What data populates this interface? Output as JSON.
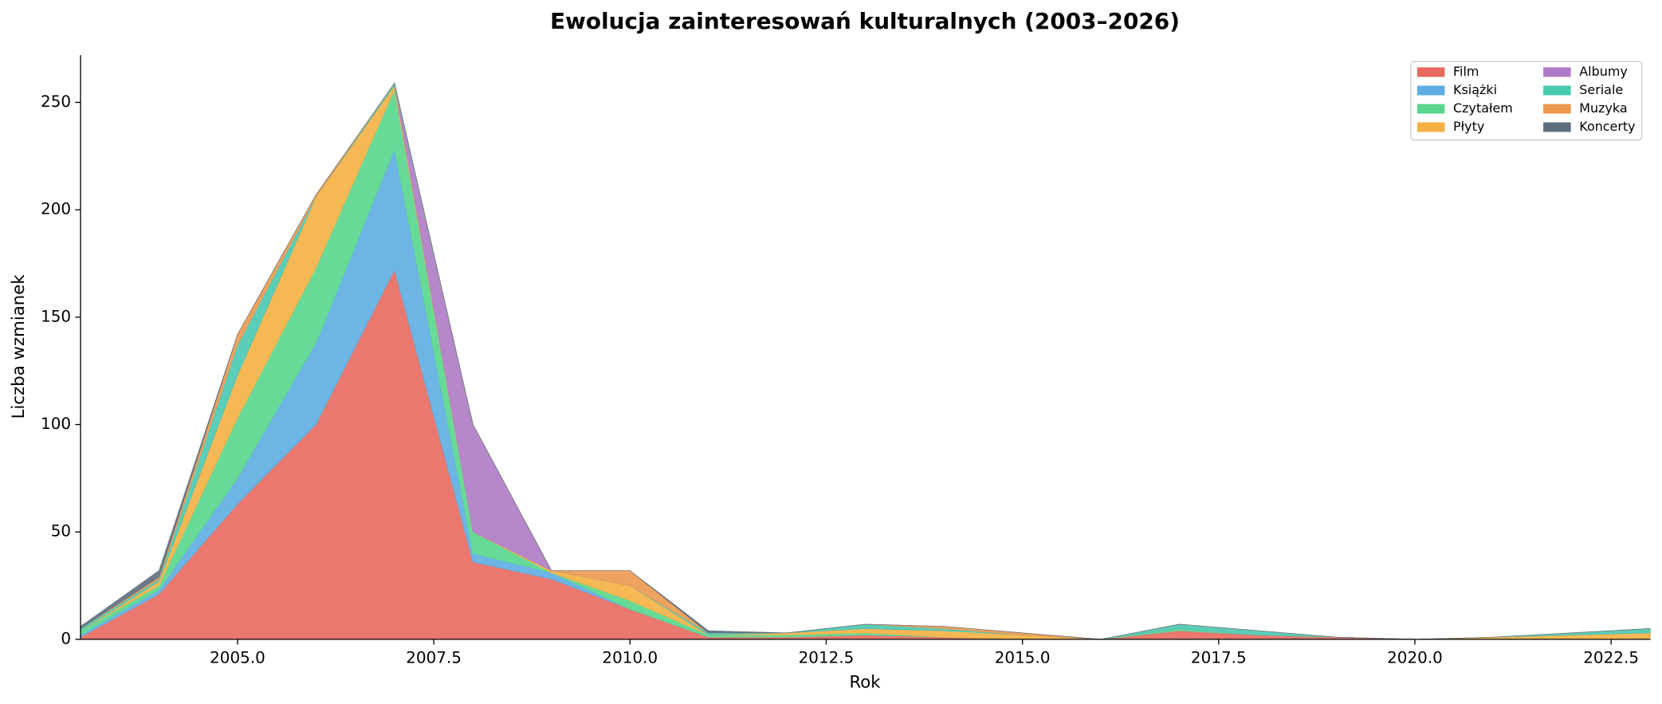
{
  "chart_data": {
    "type": "stacked_area",
    "title": "Ewolucja zainteresowań kulturalnych (2003–2026)",
    "xlabel": "Rok",
    "ylabel": "Liczba wzmianek",
    "x": [
      2003,
      2004,
      2005,
      2006,
      2007,
      2008,
      2009,
      2010,
      2011,
      2012,
      2013,
      2014,
      2015,
      2016,
      2017,
      2018,
      2019,
      2020,
      2021,
      2022,
      2023
    ],
    "series": [
      {
        "name": "Film",
        "color": "#e8695e",
        "values": [
          1,
          21,
          63,
          100,
          172,
          36,
          28,
          14,
          1,
          1,
          2,
          1,
          0,
          0,
          4,
          2,
          1,
          0,
          0,
          0,
          0
        ]
      },
      {
        "name": "Książki",
        "color": "#5dade2",
        "values": [
          1,
          2,
          12,
          38,
          56,
          4,
          3,
          0,
          0,
          0,
          0,
          0,
          0,
          0,
          0,
          0,
          0,
          0,
          0,
          0,
          0
        ]
      },
      {
        "name": "Czytałem",
        "color": "#58d68d",
        "values": [
          2,
          2,
          28,
          35,
          28,
          10,
          0,
          4,
          1,
          1,
          1,
          0,
          0,
          0,
          1,
          0,
          0,
          0,
          0,
          0,
          0
        ]
      },
      {
        "name": "Płyty",
        "color": "#f5b041",
        "values": [
          0,
          2,
          20,
          33,
          2,
          0,
          1,
          7,
          0,
          1,
          2,
          3,
          2,
          0,
          0,
          0,
          0,
          0,
          1,
          2,
          3
        ]
      },
      {
        "name": "Albumy",
        "color": "#af7ac5",
        "values": [
          0,
          0,
          0,
          0,
          0,
          50,
          0,
          0,
          0,
          0,
          0,
          0,
          0,
          0,
          0,
          0,
          0,
          0,
          0,
          0,
          0
        ]
      },
      {
        "name": "Seriale",
        "color": "#48c9b0",
        "values": [
          1,
          1,
          14,
          0,
          1,
          0,
          0,
          0,
          1,
          0,
          2,
          1,
          0,
          0,
          2,
          2,
          0,
          0,
          0,
          1,
          2
        ]
      },
      {
        "name": "Muzyka",
        "color": "#eb984e",
        "values": [
          0,
          1,
          5,
          1,
          0,
          0,
          0,
          7,
          0,
          0,
          0,
          1,
          1,
          0,
          0,
          0,
          0,
          0,
          0,
          0,
          0
        ]
      },
      {
        "name": "Koncerty",
        "color": "#5d6d7e",
        "values": [
          1,
          3,
          0,
          0,
          0,
          0,
          0,
          0,
          1,
          0,
          0,
          0,
          0,
          0,
          0,
          0,
          0,
          0,
          0,
          0,
          0
        ]
      }
    ],
    "xlim": [
      2003,
      2023
    ],
    "ylim": [
      0,
      272
    ],
    "xticks": [
      {
        "value": 2005,
        "label": "2005.0"
      },
      {
        "value": 2007.5,
        "label": "2007.5"
      },
      {
        "value": 2010,
        "label": "2010.0"
      },
      {
        "value": 2012.5,
        "label": "2012.5"
      },
      {
        "value": 2015,
        "label": "2015.0"
      },
      {
        "value": 2017.5,
        "label": "2017.5"
      },
      {
        "value": 2020,
        "label": "2020.0"
      },
      {
        "value": 2022.5,
        "label": "2022.5"
      }
    ],
    "yticks": [
      0,
      50,
      100,
      150,
      200,
      250
    ],
    "legend": "upper right"
  }
}
